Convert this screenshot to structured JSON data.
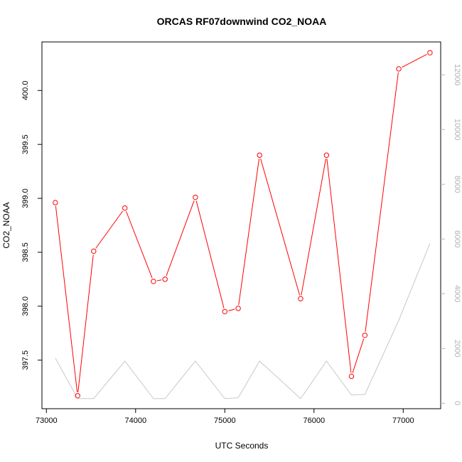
{
  "chart_data": {
    "type": "line",
    "title": "ORCAS RF07downwind CO2_NOAA",
    "xlabel": "UTC Seconds",
    "ylabel": "CO2_NOAA",
    "xlim": [
      72950,
      77420
    ],
    "ylim": [
      397.05,
      400.45
    ],
    "y2lim": [
      -200,
      13200
    ],
    "x_ticks": [
      73000,
      74000,
      75000,
      76000,
      77000
    ],
    "y_ticks": [
      397.5,
      398.0,
      398.5,
      399.0,
      399.5,
      400.0
    ],
    "y_tick_labels": [
      "397.5",
      "398.0",
      "398.5",
      "399.0",
      "399.5",
      "400.0"
    ],
    "y2_ticks": [
      0,
      2000,
      4000,
      6000,
      8000,
      10000,
      12000
    ],
    "y2_tick_labels": [
      "0",
      "2000",
      "4000",
      "6000",
      "8000",
      "10000",
      "12000"
    ],
    "grid": false,
    "series": [
      {
        "color": "#ff0000",
        "axis": "left",
        "markers": true,
        "points": [
          {
            "x": 73100,
            "y": 398.96
          },
          {
            "x": 73350,
            "y": 397.17
          },
          {
            "x": 73530,
            "y": 398.51
          },
          {
            "x": 73880,
            "y": 398.91
          },
          {
            "x": 74200,
            "y": 398.23
          },
          {
            "x": 74330,
            "y": 398.25
          },
          {
            "x": 74670,
            "y": 399.01
          },
          {
            "x": 75000,
            "y": 397.95
          },
          {
            "x": 75150,
            "y": 397.98
          },
          {
            "x": 75390,
            "y": 399.4
          },
          {
            "x": 75850,
            "y": 398.07
          },
          {
            "x": 76140,
            "y": 399.4
          },
          {
            "x": 76420,
            "y": 397.35
          },
          {
            "x": 76570,
            "y": 397.73
          },
          {
            "x": 76950,
            "y": 400.2
          },
          {
            "x": 77300,
            "y": 400.35
          }
        ]
      },
      {
        "color": "#c8c8c8",
        "axis": "right",
        "markers": false,
        "points": [
          {
            "x": 73100,
            "y": 1650
          },
          {
            "x": 73350,
            "y": 170
          },
          {
            "x": 73530,
            "y": 170
          },
          {
            "x": 73880,
            "y": 1540
          },
          {
            "x": 74200,
            "y": 170
          },
          {
            "x": 74330,
            "y": 170
          },
          {
            "x": 74670,
            "y": 1540
          },
          {
            "x": 75000,
            "y": 170
          },
          {
            "x": 75150,
            "y": 200
          },
          {
            "x": 75390,
            "y": 1540
          },
          {
            "x": 75850,
            "y": 170
          },
          {
            "x": 76140,
            "y": 1540
          },
          {
            "x": 76420,
            "y": 300
          },
          {
            "x": 76570,
            "y": 320
          },
          {
            "x": 76950,
            "y": 3030
          },
          {
            "x": 77300,
            "y": 5840
          }
        ]
      }
    ]
  }
}
